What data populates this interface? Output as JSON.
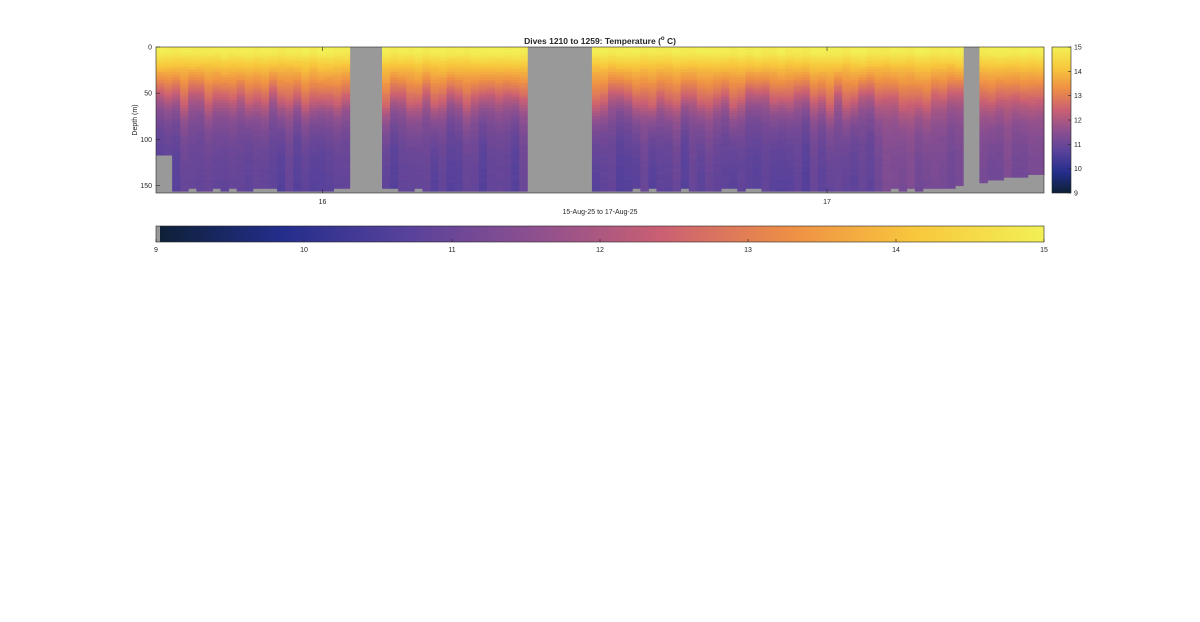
{
  "chart_data": {
    "type": "heatmap",
    "title": "Dives 1210 to 1259: Temperature (",
    "title_degree": "o",
    "title_unit": " C)",
    "xlabel": "15-Aug-25 to 17-Aug-25",
    "ylabel": "Depth (m)",
    "x_tick_labels": [
      "16",
      "17"
    ],
    "x_ticks": [
      16,
      17
    ],
    "xlim": [
      15.67,
      17.43
    ],
    "y_tick_labels": [
      "0",
      "50",
      "100",
      "150"
    ],
    "y_ticks": [
      0,
      50,
      100,
      150
    ],
    "ylim": [
      0,
      158
    ],
    "y_reversed": true,
    "clim": [
      9,
      15
    ],
    "colorbar_tick_labels": [
      "9",
      "10",
      "11",
      "12",
      "13",
      "14",
      "15"
    ],
    "colorbar_ticks": [
      9,
      10,
      11,
      12,
      13,
      14,
      15
    ],
    "colormap": [
      "#0d2035",
      "#242e8c",
      "#59429b",
      "#8e508f",
      "#cb6072",
      "#ee8f45",
      "#f8c83c",
      "#f2f055"
    ],
    "nodata_color": "#999999",
    "gaps": [
      [
        16.05,
        16.12
      ],
      [
        16.4,
        16.54
      ],
      [
        17.27,
        17.3
      ]
    ],
    "profiles": {
      "surface_temp": 15.0,
      "deep_temp": 10.6,
      "thermocline_depth_range": [
        48,
        65
      ],
      "max_depth_range": [
        117,
        156
      ]
    }
  }
}
